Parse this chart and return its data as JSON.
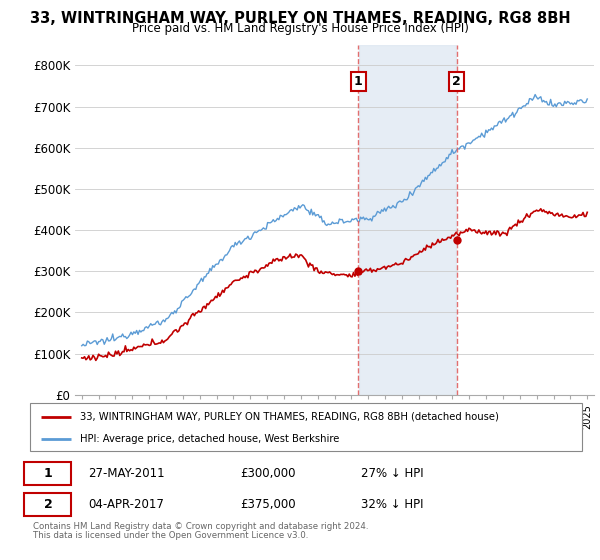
{
  "title": "33, WINTRINGHAM WAY, PURLEY ON THAMES, READING, RG8 8BH",
  "subtitle": "Price paid vs. HM Land Registry's House Price Index (HPI)",
  "legend_line1": "33, WINTRINGHAM WAY, PURLEY ON THAMES, READING, RG8 8BH (detached house)",
  "legend_line2": "HPI: Average price, detached house, West Berkshire",
  "footer1": "Contains HM Land Registry data © Crown copyright and database right 2024.",
  "footer2": "This data is licensed under the Open Government Licence v3.0.",
  "transaction1_date": "27-MAY-2011",
  "transaction1_price": "£300,000",
  "transaction1_hpi": "27% ↓ HPI",
  "transaction2_date": "04-APR-2017",
  "transaction2_price": "£375,000",
  "transaction2_hpi": "32% ↓ HPI",
  "hpi_color": "#5b9bd5",
  "price_color": "#c00000",
  "marker_color": "#c00000",
  "vline_color": "#e06060",
  "shade_color": "#dce6f1",
  "background_color": "#ffffff",
  "ylim": [
    0,
    850000
  ],
  "yticks": [
    0,
    100000,
    200000,
    300000,
    400000,
    500000,
    600000,
    700000,
    800000
  ],
  "ytick_labels": [
    "£0",
    "£100K",
    "£200K",
    "£300K",
    "£400K",
    "£500K",
    "£600K",
    "£700K",
    "£800K"
  ],
  "sale1_year": 2011.4,
  "sale1_price": 300000,
  "sale2_year": 2017.25,
  "sale2_price": 375000
}
